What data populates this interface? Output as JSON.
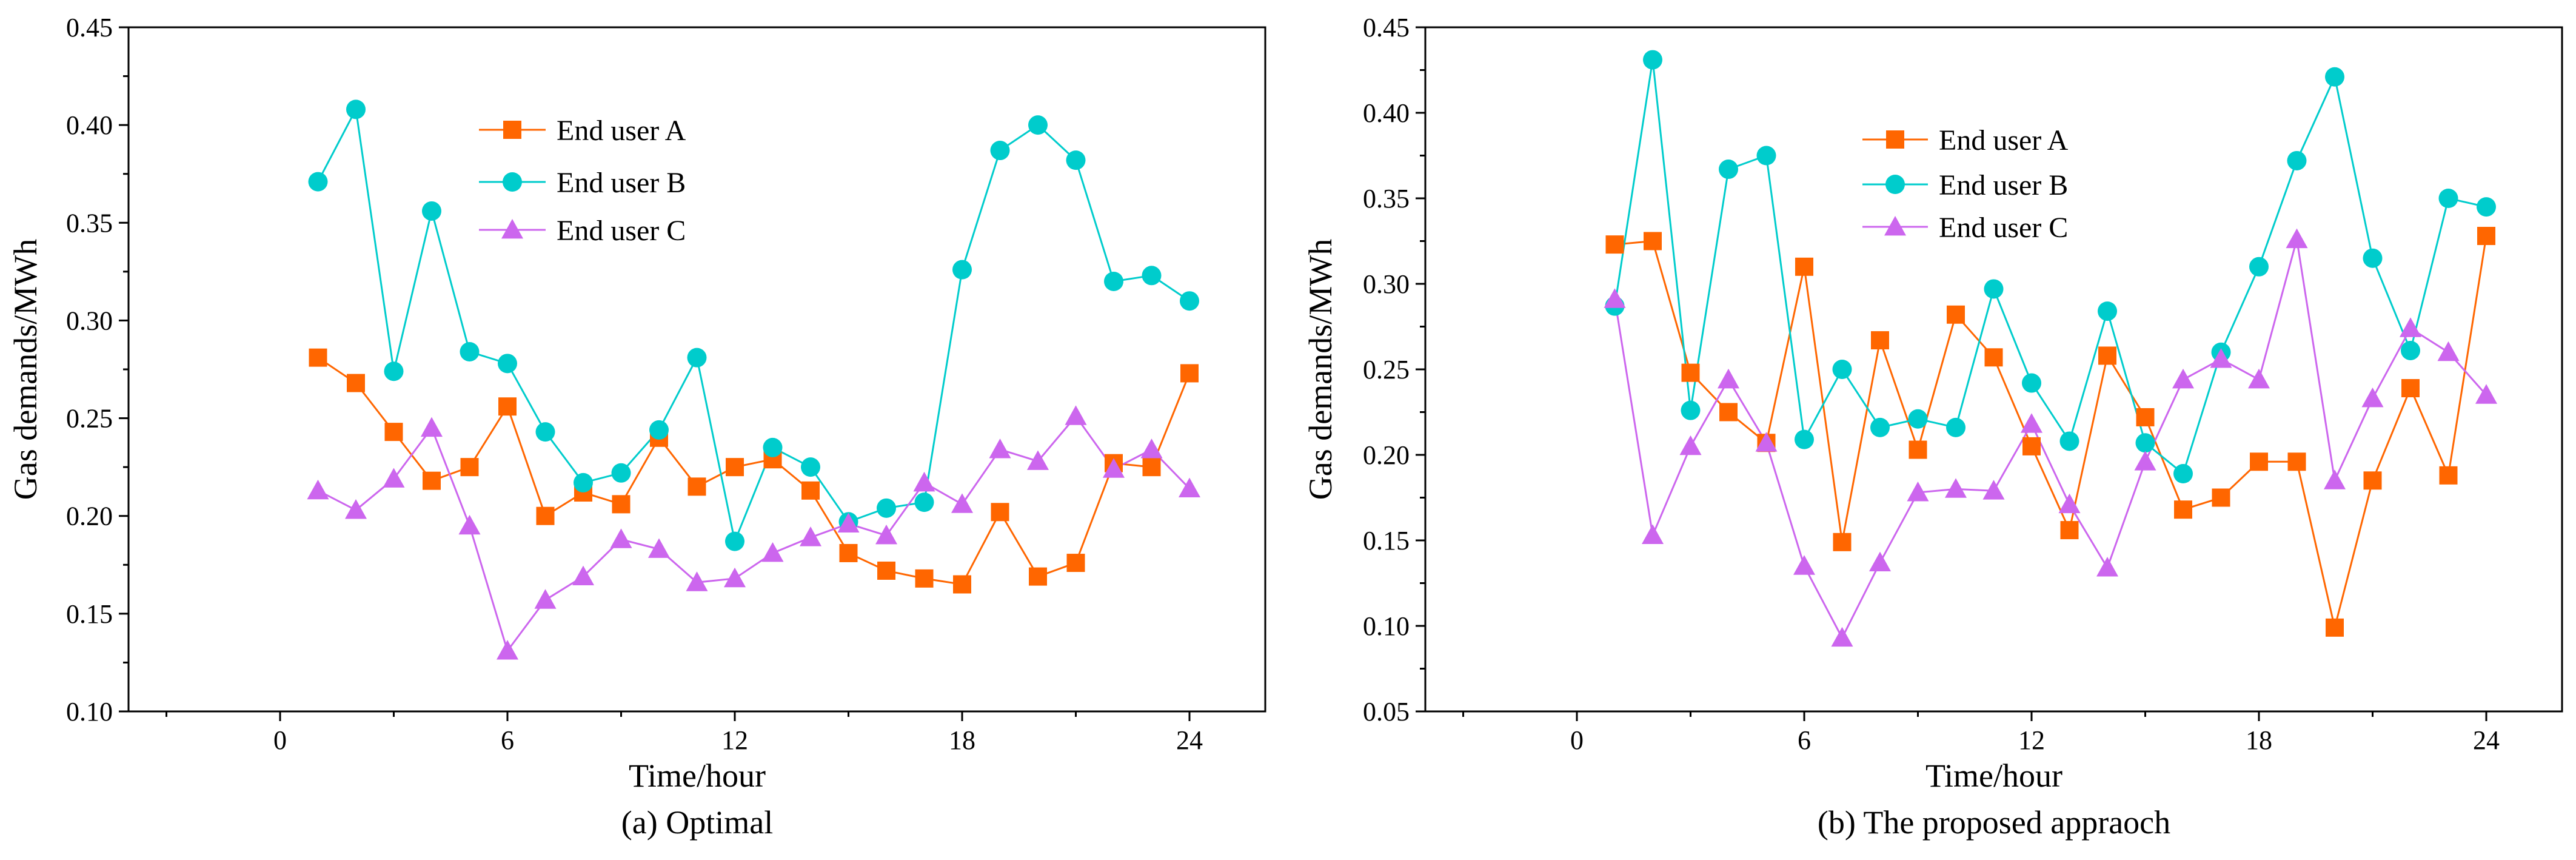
{
  "colors": {
    "a": "#FF6600",
    "b": "#00CCCC",
    "c": "#CC66EE"
  },
  "chart_data": [
    {
      "type": "line",
      "caption": "(a) Optimal",
      "xlabel": "Time/hour",
      "ylabel": "Gas demands/MWh",
      "xlim": [
        -4,
        26
      ],
      "ylim": [
        0.1,
        0.45
      ],
      "xticks": [
        0,
        6,
        12,
        18,
        24
      ],
      "xtick_labels": [
        "0",
        "6",
        "12",
        "18",
        "24"
      ],
      "yticks": [
        0.1,
        0.15,
        0.2,
        0.25,
        0.3,
        0.35,
        0.4,
        0.45
      ],
      "ytick_labels": [
        "0.10",
        "0.15",
        "0.20",
        "0.25",
        "0.30",
        "0.35",
        "0.40",
        "0.45"
      ],
      "x": [
        1,
        2,
        3,
        4,
        5,
        6,
        7,
        8,
        9,
        10,
        11,
        12,
        13,
        14,
        15,
        16,
        17,
        18,
        19,
        20,
        21,
        22,
        23,
        24
      ],
      "series": [
        {
          "name": "End user A",
          "marker": "square",
          "values": [
            0.281,
            0.268,
            0.243,
            0.218,
            0.225,
            0.256,
            0.2,
            0.212,
            0.206,
            0.24,
            0.215,
            0.225,
            0.229,
            0.213,
            0.181,
            0.172,
            0.168,
            0.165,
            0.202,
            0.169,
            0.176,
            0.227,
            0.225,
            0.273
          ]
        },
        {
          "name": "End user B",
          "marker": "circle",
          "values": [
            0.371,
            0.408,
            0.274,
            0.356,
            0.284,
            0.278,
            0.243,
            0.217,
            0.222,
            0.244,
            0.281,
            0.187,
            0.235,
            0.225,
            0.197,
            0.204,
            0.207,
            0.326,
            0.387,
            0.4,
            0.382,
            0.32,
            0.323,
            0.31
          ]
        },
        {
          "name": "End user C",
          "marker": "triangle",
          "values": [
            0.213,
            0.203,
            0.219,
            0.245,
            0.195,
            0.131,
            0.157,
            0.169,
            0.188,
            0.183,
            0.166,
            0.168,
            0.181,
            0.189,
            0.196,
            0.19,
            0.217,
            0.206,
            0.234,
            0.228,
            0.251,
            0.224,
            0.234,
            0.214
          ]
        }
      ]
    },
    {
      "type": "line",
      "caption": "(b) The proposed appraoch",
      "xlabel": "Time/hour",
      "ylabel": "Gas demands/MWh",
      "xlim": [
        -4,
        26
      ],
      "ylim": [
        0.05,
        0.45
      ],
      "xticks": [
        0,
        6,
        12,
        18,
        24
      ],
      "xtick_labels": [
        "0",
        "6",
        "12",
        "18",
        "24"
      ],
      "yticks": [
        0.05,
        0.1,
        0.15,
        0.2,
        0.25,
        0.3,
        0.35,
        0.4,
        0.45
      ],
      "ytick_labels": [
        "0.05",
        "0.10",
        "0.15",
        "0.20",
        "0.25",
        "0.30",
        "0.35",
        "0.40",
        "0.45"
      ],
      "x": [
        1,
        2,
        3,
        4,
        5,
        6,
        7,
        8,
        9,
        10,
        11,
        12,
        13,
        14,
        15,
        16,
        17,
        18,
        19,
        20,
        21,
        22,
        23,
        24
      ],
      "series": [
        {
          "name": "End user A",
          "marker": "square",
          "values": [
            0.323,
            0.325,
            0.248,
            0.225,
            0.207,
            0.31,
            0.149,
            0.267,
            0.203,
            0.282,
            0.257,
            0.205,
            0.156,
            0.258,
            0.222,
            0.168,
            0.175,
            0.196,
            0.196,
            0.099,
            0.185,
            0.239,
            0.188,
            0.328
          ]
        },
        {
          "name": "End user B",
          "marker": "circle",
          "values": [
            0.287,
            0.431,
            0.226,
            0.367,
            0.375,
            0.209,
            0.25,
            0.216,
            0.221,
            0.216,
            0.297,
            0.242,
            0.208,
            0.284,
            0.207,
            0.189,
            0.26,
            0.31,
            0.372,
            0.421,
            0.315,
            0.261,
            0.35,
            0.345
          ]
        },
        {
          "name": "End user C",
          "marker": "triangle",
          "values": [
            0.291,
            0.153,
            0.205,
            0.244,
            0.207,
            0.135,
            0.093,
            0.137,
            0.178,
            0.18,
            0.179,
            0.218,
            0.171,
            0.134,
            0.196,
            0.244,
            0.256,
            0.244,
            0.326,
            0.185,
            0.233,
            0.274,
            0.26,
            0.235
          ]
        }
      ]
    }
  ]
}
